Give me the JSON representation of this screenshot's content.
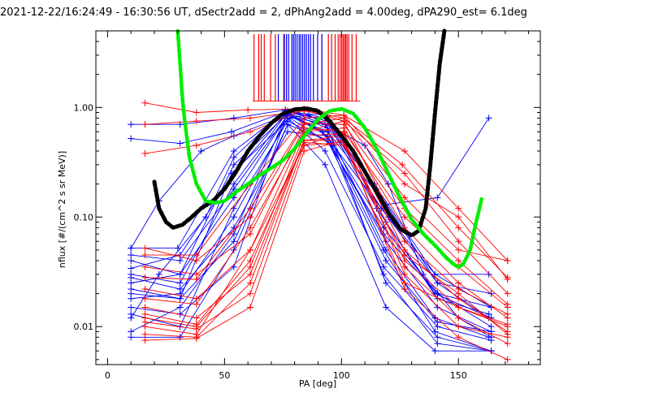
{
  "chart_data": {
    "type": "line",
    "title": "2021-12-22/16:24:49 - 16:30:56 UT, dSectr2add = 2, dPhAng2add = 4.00deg, dPA290_est=   6.1deg",
    "xlabel": "PA [deg]",
    "ylabel": "nflux [#/(cm^2 s sr MeV)]",
    "xlim": [
      -5,
      185
    ],
    "ylim": [
      0.0045,
      5.0
    ],
    "yscale": "log",
    "xticks": [
      0,
      50,
      100,
      150
    ],
    "xtick_labels": [
      "0",
      "50",
      "100",
      "150"
    ],
    "yticks": [
      1.0,
      0.1,
      0.01
    ],
    "ytick_labels": [
      "1.00",
      "0.10",
      "0.01"
    ],
    "grid": false,
    "colors": {
      "blue": "#0000ff",
      "red": "#ff0000",
      "black": "#000000",
      "green": "#00ee00"
    },
    "blue_ticks_pa": [
      73.0,
      75.6,
      76.5,
      77.4,
      78.8,
      79.5,
      80.2,
      81.0,
      81.9,
      82.6,
      83.4,
      84.2,
      85.0,
      85.9,
      86.8,
      88.0,
      89.8,
      91.6
    ],
    "red_ticks_pa": [
      62.6,
      64.6,
      65.7,
      67.0,
      69.7,
      71.7,
      75.3,
      91.6,
      94.4,
      95.8,
      97.3,
      98.6,
      99.4,
      100.1,
      100.7,
      101.3,
      101.8,
      102.4,
      103.1,
      104.5,
      106.3
    ],
    "series": [
      {
        "color": "blue",
        "x": [
          10,
          31,
          54,
          76,
          93,
          114,
          140,
          164
        ],
        "y": [
          0.7,
          0.7,
          0.8,
          0.95,
          0.7,
          0.2,
          0.03,
          0.015
        ]
      },
      {
        "color": "blue",
        "x": [
          10,
          31,
          53,
          77,
          94,
          115,
          141,
          163
        ],
        "y": [
          0.52,
          0.47,
          0.6,
          0.93,
          0.75,
          0.18,
          0.025,
          0.012
        ]
      },
      {
        "color": "blue",
        "x": [
          10,
          22,
          40,
          54,
          72,
          86,
          110,
          120,
          135,
          150,
          164
        ],
        "y": [
          0.052,
          0.14,
          0.4,
          0.55,
          0.78,
          0.85,
          0.45,
          0.2,
          0.03,
          0.012,
          0.008
        ]
      },
      {
        "color": "blue",
        "x": [
          10,
          31,
          54,
          77,
          92,
          119,
          141,
          164
        ],
        "y": [
          0.025,
          0.03,
          0.15,
          0.85,
          0.6,
          0.06,
          0.015,
          0.009
        ]
      },
      {
        "color": "blue",
        "x": [
          10,
          31,
          54,
          77,
          94,
          118,
          141,
          164
        ],
        "y": [
          0.04,
          0.03,
          0.3,
          0.88,
          0.55,
          0.08,
          0.02,
          0.015
        ]
      },
      {
        "color": "blue",
        "x": [
          10,
          31,
          54,
          76,
          93,
          119,
          140,
          163
        ],
        "y": [
          0.03,
          0.025,
          0.2,
          0.85,
          0.7,
          0.05,
          0.012,
          0.008
        ]
      },
      {
        "color": "blue",
        "x": [
          10,
          31,
          54,
          77,
          93,
          118,
          141,
          164
        ],
        "y": [
          0.018,
          0.02,
          0.1,
          0.8,
          0.4,
          0.035,
          0.01,
          0.0075
        ]
      },
      {
        "color": "blue",
        "x": [
          10,
          31,
          54,
          77,
          94,
          119,
          141,
          164
        ],
        "y": [
          0.009,
          0.015,
          0.07,
          0.9,
          0.65,
          0.025,
          0.008,
          0.006
        ]
      },
      {
        "color": "blue",
        "x": [
          10,
          31,
          54,
          77,
          93,
          119,
          140,
          164
        ],
        "y": [
          0.008,
          0.008,
          0.05,
          0.7,
          0.3,
          0.015,
          0.006,
          0.006
        ]
      },
      {
        "color": "blue",
        "x": [
          10,
          30,
          54,
          76,
          92,
          120,
          140,
          163
        ],
        "y": [
          0.052,
          0.052,
          0.4,
          0.92,
          0.6,
          0.1,
          0.03,
          0.03
        ]
      },
      {
        "color": "blue",
        "x": [
          10,
          31,
          53,
          78,
          96,
          118,
          140,
          164
        ],
        "y": [
          0.022,
          0.018,
          0.25,
          0.8,
          0.45,
          0.05,
          0.009,
          0.006
        ]
      },
      {
        "color": "blue",
        "x": [
          10,
          31,
          54,
          77,
          94,
          118,
          141,
          164
        ],
        "y": [
          0.013,
          0.01,
          0.12,
          0.75,
          0.5,
          0.07,
          0.02,
          0.01
        ]
      },
      {
        "color": "blue",
        "x": [
          10,
          22,
          42,
          54,
          76,
          93,
          115,
          140,
          164
        ],
        "y": [
          0.012,
          0.03,
          0.1,
          0.35,
          0.95,
          0.8,
          0.12,
          0.02,
          0.012
        ]
      },
      {
        "color": "blue",
        "x": [
          10,
          31,
          54,
          77,
          94,
          117,
          141,
          164
        ],
        "y": [
          0.034,
          0.045,
          0.25,
          0.92,
          0.75,
          0.12,
          0.025,
          0.02
        ]
      },
      {
        "color": "blue",
        "x": [
          10,
          31,
          54,
          77,
          94,
          118,
          141,
          164
        ],
        "y": [
          0.028,
          0.022,
          0.08,
          0.6,
          0.55,
          0.03,
          0.007,
          0.006
        ]
      },
      {
        "color": "blue",
        "x": [
          10,
          31,
          54,
          77,
          94,
          119,
          141,
          163
        ],
        "y": [
          0.015,
          0.013,
          0.035,
          0.9,
          0.85,
          0.09,
          0.018,
          0.013
        ]
      },
      {
        "color": "blue",
        "x": [
          10,
          31,
          54,
          77,
          94,
          119,
          141,
          163
        ],
        "y": [
          0.045,
          0.04,
          0.18,
          0.85,
          0.6,
          0.13,
          0.15,
          0.8
        ]
      },
      {
        "color": "blue",
        "x": [
          10,
          31,
          54,
          77,
          94,
          119,
          141,
          164
        ],
        "y": [
          0.02,
          0.018,
          0.06,
          0.7,
          0.5,
          0.04,
          0.011,
          0.009
        ]
      },
      {
        "color": "red",
        "x": [
          16,
          38,
          60,
          84,
          101,
          127,
          150,
          171
        ],
        "y": [
          1.1,
          0.9,
          0.95,
          0.97,
          0.85,
          0.4,
          0.12,
          0.04
        ]
      },
      {
        "color": "red",
        "x": [
          16,
          38,
          61,
          84,
          101,
          126,
          150,
          171
        ],
        "y": [
          0.7,
          0.75,
          0.8,
          0.93,
          0.8,
          0.3,
          0.08,
          0.028
        ]
      },
      {
        "color": "red",
        "x": [
          16,
          38,
          61,
          84,
          101,
          127,
          150,
          171
        ],
        "y": [
          0.38,
          0.45,
          0.6,
          0.95,
          0.75,
          0.25,
          0.06,
          0.02
        ]
      },
      {
        "color": "red",
        "x": [
          16,
          38,
          61,
          84,
          101,
          127,
          150,
          171
        ],
        "y": [
          0.052,
          0.04,
          0.1,
          0.7,
          0.8,
          0.15,
          0.05,
          0.04
        ]
      },
      {
        "color": "red",
        "x": [
          16,
          38,
          61,
          84,
          101,
          127,
          150,
          171
        ],
        "y": [
          0.035,
          0.03,
          0.07,
          0.65,
          0.6,
          0.1,
          0.035,
          0.015
        ]
      },
      {
        "color": "red",
        "x": [
          16,
          38,
          61,
          84,
          101,
          127,
          150,
          171
        ],
        "y": [
          0.022,
          0.018,
          0.05,
          0.6,
          0.75,
          0.06,
          0.022,
          0.013
        ]
      },
      {
        "color": "red",
        "x": [
          16,
          38,
          61,
          84,
          101,
          127,
          150,
          171
        ],
        "y": [
          0.015,
          0.012,
          0.03,
          0.5,
          0.55,
          0.04,
          0.015,
          0.01
        ]
      },
      {
        "color": "red",
        "x": [
          16,
          38,
          61,
          84,
          101,
          127,
          150,
          171
        ],
        "y": [
          0.011,
          0.0095,
          0.02,
          0.45,
          0.6,
          0.03,
          0.01,
          0.008
        ]
      },
      {
        "color": "red",
        "x": [
          16,
          38,
          61,
          84,
          101,
          127,
          150,
          171
        ],
        "y": [
          0.0075,
          0.0078,
          0.015,
          0.4,
          0.5,
          0.022,
          0.008,
          0.005
        ]
      },
      {
        "color": "red",
        "x": [
          16,
          38,
          61,
          84,
          101,
          127,
          150,
          171
        ],
        "y": [
          0.045,
          0.045,
          0.2,
          0.8,
          0.85,
          0.2,
          0.1,
          0.027
        ]
      },
      {
        "color": "red",
        "x": [
          16,
          38,
          61,
          84,
          101,
          127,
          150,
          171
        ],
        "y": [
          0.028,
          0.027,
          0.12,
          0.72,
          0.7,
          0.12,
          0.04,
          0.016
        ]
      },
      {
        "color": "red",
        "x": [
          16,
          38,
          61,
          84,
          101,
          127,
          150,
          171
        ],
        "y": [
          0.018,
          0.016,
          0.08,
          0.6,
          0.65,
          0.08,
          0.025,
          0.012
        ]
      },
      {
        "color": "red",
        "x": [
          16,
          38,
          61,
          84,
          101,
          127,
          150,
          171
        ],
        "y": [
          0.012,
          0.01,
          0.035,
          0.55,
          0.58,
          0.05,
          0.018,
          0.009
        ]
      },
      {
        "color": "red",
        "x": [
          16,
          38,
          61,
          84,
          101,
          127,
          150,
          171
        ],
        "y": [
          0.0085,
          0.008,
          0.025,
          0.5,
          0.5,
          0.035,
          0.012,
          0.007
        ]
      },
      {
        "color": "red",
        "x": [
          16,
          38,
          61,
          84,
          101,
          127,
          150,
          171
        ],
        "y": [
          0.013,
          0.0105,
          0.04,
          0.48,
          0.45,
          0.045,
          0.02,
          0.0085
        ]
      },
      {
        "color": "red",
        "x": [
          16,
          38,
          61,
          84,
          101,
          127,
          150,
          171
        ],
        "y": [
          0.01,
          0.0085,
          0.05,
          0.45,
          0.48,
          0.025,
          0.015,
          0.0105
        ]
      },
      {
        "color": "black",
        "x": [
          20,
          22,
          25,
          28,
          32,
          36,
          40,
          45,
          50,
          55,
          60,
          65,
          70,
          75,
          80,
          85,
          90,
          95,
          100,
          105,
          110,
          115,
          120,
          125,
          130,
          133,
          136,
          138,
          140,
          142,
          144
        ],
        "y": [
          0.21,
          0.12,
          0.09,
          0.08,
          0.085,
          0.1,
          0.12,
          0.14,
          0.18,
          0.26,
          0.4,
          0.55,
          0.72,
          0.88,
          0.96,
          0.98,
          0.93,
          0.75,
          0.55,
          0.4,
          0.26,
          0.17,
          0.11,
          0.078,
          0.068,
          0.075,
          0.12,
          0.3,
          0.9,
          2.5,
          5.0
        ]
      },
      {
        "color": "green",
        "x": [
          30,
          31,
          32,
          33,
          35,
          38,
          42,
          46,
          50,
          55,
          60,
          65,
          70,
          75,
          80,
          85,
          90,
          95,
          100,
          105,
          110,
          115,
          120,
          125,
          130,
          135,
          140,
          145,
          148,
          150,
          152,
          155,
          157,
          159,
          160
        ],
        "y": [
          5.0,
          2.5,
          1.2,
          0.75,
          0.35,
          0.2,
          0.14,
          0.135,
          0.14,
          0.17,
          0.2,
          0.24,
          0.28,
          0.33,
          0.42,
          0.58,
          0.78,
          0.93,
          0.97,
          0.88,
          0.65,
          0.42,
          0.25,
          0.15,
          0.095,
          0.07,
          0.055,
          0.042,
          0.037,
          0.035,
          0.037,
          0.05,
          0.08,
          0.12,
          0.15
        ]
      }
    ]
  }
}
